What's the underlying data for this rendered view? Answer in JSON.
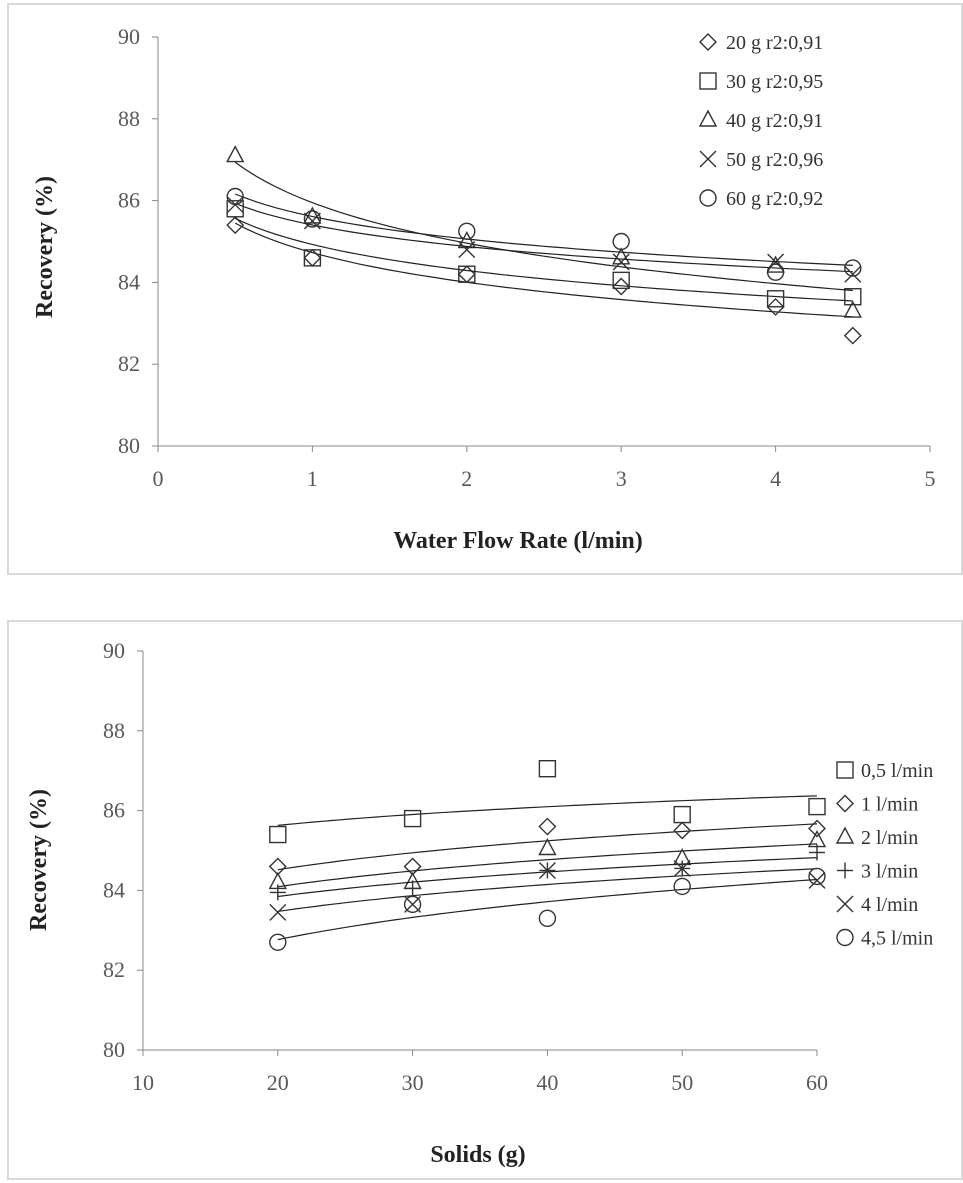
{
  "chart_data": [
    {
      "type": "scatter",
      "title": "",
      "xlabel": "Water Flow Rate (l/min)",
      "ylabel": "Recovery (%)",
      "xlim": [
        0,
        5
      ],
      "ylim": [
        80,
        90
      ],
      "xticks": [
        "0",
        "1",
        "2",
        "3",
        "4",
        "5"
      ],
      "yticks": [
        "80",
        "82",
        "84",
        "86",
        "88",
        "90"
      ],
      "grid": false,
      "legend_position": "top-right",
      "trendline": "logarithmic",
      "series": [
        {
          "name": "20 g  r2:0,91",
          "marker": "diamond",
          "x": [
            0.5,
            1,
            2,
            3,
            4,
            4.5
          ],
          "y": [
            85.4,
            84.6,
            84.2,
            83.9,
            83.4,
            82.7
          ]
        },
        {
          "name": "30 g  r2:0,95",
          "marker": "square",
          "x": [
            0.5,
            1,
            2,
            3,
            4,
            4.5
          ],
          "y": [
            85.8,
            84.6,
            84.2,
            84.05,
            83.6,
            83.65
          ]
        },
        {
          "name": "40 g  r2:0,91",
          "marker": "triangle",
          "x": [
            0.5,
            1,
            2,
            3,
            4,
            4.5
          ],
          "y": [
            87.1,
            85.6,
            85.0,
            84.6,
            84.4,
            83.3
          ]
        },
        {
          "name": "50 g  r2:0,96",
          "marker": "x",
          "x": [
            0.5,
            1,
            2,
            3,
            4,
            4.5
          ],
          "y": [
            85.9,
            85.5,
            84.8,
            84.5,
            84.5,
            84.2
          ]
        },
        {
          "name": "60 g  r2:0,92",
          "marker": "circle",
          "x": [
            0.5,
            1,
            2,
            3,
            4,
            4.5
          ],
          "y": [
            86.1,
            85.55,
            85.25,
            85.0,
            84.25,
            84.35
          ]
        }
      ]
    },
    {
      "type": "scatter",
      "title": "",
      "xlabel": "Solids (g)",
      "ylabel": "Recovery (%)",
      "xlim": [
        10,
        60
      ],
      "ylim": [
        80,
        90
      ],
      "xticks": [
        "10",
        "20",
        "30",
        "40",
        "50",
        "60"
      ],
      "yticks": [
        "80",
        "82",
        "84",
        "86",
        "88",
        "90"
      ],
      "grid": false,
      "legend_position": "right",
      "trendline": "logarithmic",
      "series": [
        {
          "name": "0,5 l/min",
          "marker": "square",
          "x": [
            20,
            30,
            40,
            50,
            60
          ],
          "y": [
            85.4,
            85.8,
            87.05,
            85.9,
            86.1
          ]
        },
        {
          "name": "1 l/min",
          "marker": "diamond",
          "x": [
            20,
            30,
            40,
            50,
            60
          ],
          "y": [
            84.6,
            84.6,
            85.6,
            85.5,
            85.55
          ]
        },
        {
          "name": "2 l/min",
          "marker": "triangle",
          "x": [
            20,
            30,
            40,
            50,
            60
          ],
          "y": [
            84.2,
            84.2,
            85.05,
            84.8,
            85.25
          ]
        },
        {
          "name": "3 l/min",
          "marker": "plus",
          "x": [
            20,
            30,
            40,
            50,
            60
          ],
          "y": [
            83.95,
            84.05,
            84.5,
            84.55,
            84.95
          ]
        },
        {
          "name": "4 l/min",
          "marker": "x",
          "x": [
            20,
            30,
            40,
            50,
            60
          ],
          "y": [
            83.45,
            83.65,
            84.5,
            84.55,
            84.25
          ]
        },
        {
          "name": "4,5 l/min",
          "marker": "circle",
          "x": [
            20,
            30,
            40,
            50,
            60
          ],
          "y": [
            82.7,
            83.65,
            83.3,
            84.1,
            84.35
          ]
        }
      ]
    }
  ]
}
